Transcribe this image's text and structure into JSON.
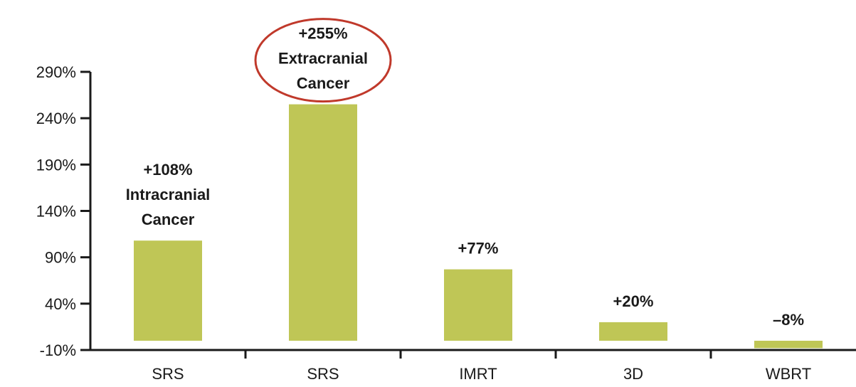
{
  "chart_data": {
    "type": "bar",
    "categories": [
      "SRS",
      "SRS",
      "IMRT",
      "3D",
      "WBRT"
    ],
    "values": [
      108,
      255,
      77,
      20,
      -8
    ],
    "data_labels": [
      [
        "+108%",
        "Intracranial",
        "Cancer"
      ],
      [
        "+255%",
        "Extracranial",
        "Cancer"
      ],
      [
        "+77%"
      ],
      [
        "+20%"
      ],
      [
        "–8%"
      ]
    ],
    "highlighted_index": 1,
    "y_ticks": [
      -10,
      40,
      90,
      140,
      190,
      240,
      290
    ],
    "y_tick_labels": [
      "-10%",
      "40%",
      "90%",
      "140%",
      "190%",
      "240%",
      "290%"
    ],
    "ylim": [
      -10,
      290
    ],
    "title": "",
    "xlabel": "",
    "ylabel": "",
    "grid": false,
    "colors": {
      "bar": "#bfc656",
      "highlight_ring": "#c0392b",
      "axis": "#1a1a1a",
      "text": "#1a1a1a"
    }
  }
}
